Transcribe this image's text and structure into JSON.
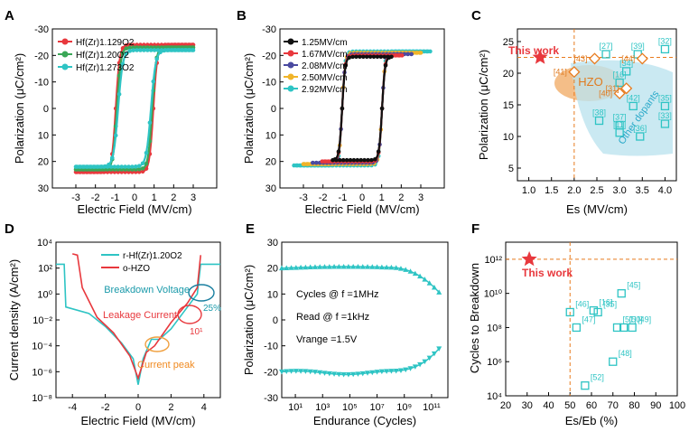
{
  "panels": {
    "A": {
      "label": "A",
      "xlabel": "Electric Field (MV/cm)",
      "ylabel": "Polarization (μC/cm²)",
      "xticks": [
        "-3",
        "-2",
        "-1",
        "0",
        "1",
        "2",
        "3"
      ],
      "yticks": [
        "-30",
        "-20",
        "-10",
        "0",
        "10",
        "20",
        "30"
      ],
      "legend": [
        "Hf(Zr)1.129O2",
        "Hf(Zr)1.20O2",
        "Hf(Zr)1.273O2"
      ],
      "colors": [
        "#e8383d",
        "#3aa757",
        "#2ec4c4"
      ]
    },
    "B": {
      "label": "B",
      "xlabel": "Electric Field (MV/cm)",
      "ylabel": "Polarization (μC/cm²)",
      "xticks": [
        "-3",
        "-2",
        "-1",
        "0",
        "1",
        "2",
        "3"
      ],
      "yticks": [
        "-30",
        "-20",
        "-10",
        "0",
        "10",
        "20",
        "30"
      ],
      "legend": [
        "1.25MV/cm",
        "1.67MV/cm",
        "2.08MV/cm",
        "2.50MV/cm",
        "2.92MV/cm"
      ],
      "colors": [
        "#111111",
        "#e8383d",
        "#4a4aa0",
        "#f0b429",
        "#2ec4c4"
      ]
    },
    "C": {
      "label": "C",
      "xlabel": "Es (MV/cm)",
      "ylabel": "Polarization (μC/cm²)",
      "xticks": [
        "1.0",
        "1.5",
        "2.0",
        "2.5",
        "3.0",
        "3.5",
        "4.0"
      ],
      "yticks": [
        "5",
        "10",
        "15",
        "20",
        "25"
      ],
      "this_work": "This work",
      "hzo": "HZO",
      "other": "Other dopants",
      "hzo_points": [
        {
          "x": 2.45,
          "y": 22.3,
          "ref": "[43]"
        },
        {
          "x": 3.5,
          "y": 22.3,
          "ref": "[44]"
        },
        {
          "x": 2.0,
          "y": 20.2,
          "ref": "[41]"
        },
        {
          "x": 3.0,
          "y": 16.8,
          "ref": "[40]"
        },
        {
          "x": 3.15,
          "y": 17.6,
          "ref": "[31]"
        }
      ],
      "other_points": [
        {
          "x": 2.7,
          "y": 23.0,
          "ref": "[27]"
        },
        {
          "x": 3.4,
          "y": 23.0,
          "ref": "[39]"
        },
        {
          "x": 4.0,
          "y": 23.8,
          "ref": "[32]"
        },
        {
          "x": 3.15,
          "y": 20.3,
          "ref": "[34]"
        },
        {
          "x": 3.0,
          "y": 18.5,
          "ref": "[16]"
        },
        {
          "x": 3.3,
          "y": 14.8,
          "ref": "[42]"
        },
        {
          "x": 4.0,
          "y": 14.8,
          "ref": "[35]"
        },
        {
          "x": 2.55,
          "y": 12.5,
          "ref": "[38]"
        },
        {
          "x": 3.0,
          "y": 11.8,
          "ref": "[37]"
        },
        {
          "x": 3.0,
          "y": 10.6,
          "ref": "[11]"
        },
        {
          "x": 3.45,
          "y": 10.0,
          "ref": "[36]"
        },
        {
          "x": 4.0,
          "y": 12.0,
          "ref": "[33]"
        }
      ],
      "this_work_point": {
        "x": 1.25,
        "y": 22.5
      },
      "vline": 2.0,
      "hline": 22.5
    },
    "D": {
      "label": "D",
      "xlabel": "Electric Field (MV/cm)",
      "ylabel": "Current density (A/cm²)",
      "xticks": [
        "-4",
        "-2",
        "0",
        "2",
        "4"
      ],
      "yticks": [
        "10⁻⁸",
        "10⁻⁶",
        "10⁻⁴",
        "10⁻²",
        "10⁰",
        "10²",
        "10⁴"
      ],
      "legend": [
        "r-Hf(Zr)1.20O2",
        "o-HZO"
      ],
      "colors": [
        "#2ec4c4",
        "#e8383d"
      ],
      "annotations": {
        "breakdown": "Breakdown Voltage",
        "leakage": "Leakage Current",
        "peak": "Current peak",
        "pct": "25%",
        "ten": "10¹"
      }
    },
    "E": {
      "label": "E",
      "xlabel": "Endurance (Cycles)",
      "ylabel": "Polarization (μC/cm²)",
      "xticks": [
        "10¹",
        "10³",
        "10⁵",
        "10⁷",
        "10⁹",
        "10¹¹"
      ],
      "yticks": [
        "-30",
        "-20",
        "-10",
        "0",
        "10",
        "20",
        "30"
      ],
      "text1": "Cycles @ f =1MHz",
      "text2": "Read @ f =1kHz",
      "text3": "Vrange =1.5V"
    },
    "F": {
      "label": "F",
      "xlabel": "Es/Eb (%)",
      "ylabel": "Cycles to Breakdown",
      "xticks": [
        "20",
        "30",
        "40",
        "50",
        "60",
        "70",
        "80",
        "90",
        "100"
      ],
      "yticks": [
        "10⁴",
        "10⁶",
        "10⁸",
        "10¹⁰",
        "10¹²"
      ],
      "this_work": "This work",
      "this_work_point": {
        "x": 31,
        "y": 12
      },
      "points": [
        {
          "x": 74,
          "y": 10.0,
          "ref": "[45]"
        },
        {
          "x": 61,
          "y": 9.0,
          "ref": "[16]"
        },
        {
          "x": 50,
          "y": 8.9,
          "ref": "[46]"
        },
        {
          "x": 63,
          "y": 8.9,
          "ref": "[35]"
        },
        {
          "x": 75,
          "y": 8.0,
          "ref": "[50]"
        },
        {
          "x": 53,
          "y": 8.0,
          "ref": "[47]"
        },
        {
          "x": 72,
          "y": 8.0,
          "ref": "[51]"
        },
        {
          "x": 79,
          "y": 8.0,
          "ref": "[49]"
        },
        {
          "x": 70,
          "y": 6.0,
          "ref": "[48]"
        },
        {
          "x": 57,
          "y": 4.6,
          "ref": "[52]"
        }
      ],
      "vline": 50,
      "hline": 12
    }
  }
}
